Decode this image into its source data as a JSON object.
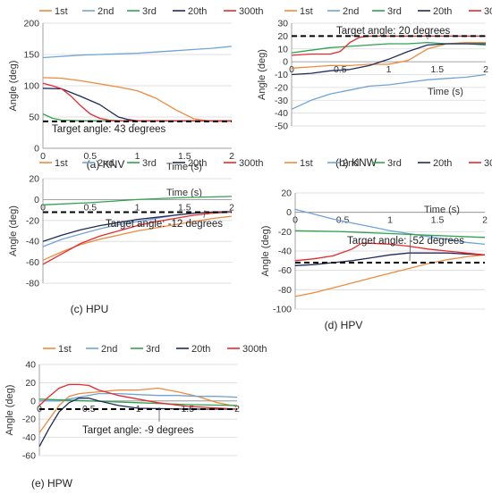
{
  "figure": {
    "ylabel": "Angle (deg)",
    "xlabel": "Time (s)",
    "legend": [
      "1st",
      "2nd",
      "3rd",
      "20th",
      "300th"
    ]
  },
  "series_colors": [
    "#ee8a3c",
    "#6fa4d6",
    "#2ea44f",
    "#1f2a5a",
    "#e8292c"
  ],
  "chart_data": [
    {
      "type": "line",
      "panel": "(a) KNV",
      "ylabel": "Angle (deg)",
      "xlabel": "Time (s)",
      "xlim": [
        0,
        2
      ],
      "ylim": [
        0,
        200
      ],
      "xticks": [
        0,
        0.5,
        1,
        1.5,
        2
      ],
      "yticks": [
        0,
        50,
        100,
        150,
        200
      ],
      "target": {
        "value": 43,
        "label": "Target angle: 43 degrees"
      },
      "series": [
        {
          "name": "1st",
          "x": [
            0,
            0.2,
            0.4,
            0.6,
            0.8,
            1.0,
            1.2,
            1.4,
            1.6,
            1.8,
            2.0
          ],
          "y": [
            113,
            112,
            108,
            103,
            98,
            92,
            80,
            62,
            47,
            43,
            43
          ]
        },
        {
          "name": "2nd",
          "x": [
            0,
            0.2,
            0.4,
            0.6,
            0.8,
            1.0,
            1.2,
            1.4,
            1.6,
            1.8,
            2.0
          ],
          "y": [
            145,
            147,
            149,
            150,
            151,
            152,
            154,
            156,
            158,
            160,
            163
          ]
        },
        {
          "name": "3rd",
          "x": [
            0,
            0.1,
            0.2,
            0.4,
            0.6,
            0.8,
            1.0,
            1.5,
            2.0
          ],
          "y": [
            55,
            48,
            45,
            44,
            44,
            44,
            44,
            44,
            44
          ]
        },
        {
          "name": "20th",
          "x": [
            0,
            0.2,
            0.4,
            0.6,
            0.7,
            0.8,
            0.9,
            1.0,
            1.2,
            1.5,
            2.0
          ],
          "y": [
            96,
            95,
            83,
            70,
            60,
            50,
            46,
            44,
            44,
            44,
            44
          ]
        },
        {
          "name": "300th",
          "x": [
            0,
            0.1,
            0.2,
            0.3,
            0.4,
            0.5,
            0.6,
            0.7,
            0.8,
            1.0,
            1.5,
            2.0
          ],
          "y": [
            104,
            100,
            95,
            83,
            68,
            55,
            48,
            45,
            44,
            44,
            44,
            44
          ]
        }
      ]
    },
    {
      "type": "line",
      "panel": "(b) KNW",
      "ylabel": "Angle (deg)",
      "xlabel": "Time (s)",
      "xlim": [
        0,
        2
      ],
      "ylim": [
        -50,
        30
      ],
      "xticks": [
        0,
        0.5,
        1,
        1.5,
        2
      ],
      "yticks": [
        -50,
        -40,
        -30,
        -20,
        -10,
        0,
        10,
        20,
        30
      ],
      "target": {
        "value": 20,
        "label": "Target angle: 20 degrees"
      },
      "series": [
        {
          "name": "1st",
          "x": [
            0,
            0.2,
            0.4,
            0.6,
            0.8,
            1.0,
            1.2,
            1.4,
            1.6,
            1.8,
            2.0
          ],
          "y": [
            -5,
            -4,
            -3,
            -3,
            -2,
            -2,
            1,
            10,
            14,
            15,
            15
          ]
        },
        {
          "name": "2nd",
          "x": [
            0,
            0.2,
            0.4,
            0.6,
            0.8,
            1.0,
            1.2,
            1.4,
            1.6,
            1.8,
            2.0
          ],
          "y": [
            -37,
            -30,
            -25,
            -22,
            -19,
            -18,
            -16,
            -14,
            -13,
            -12,
            -10
          ]
        },
        {
          "name": "3rd",
          "x": [
            0,
            0.2,
            0.4,
            0.6,
            0.8,
            1.0,
            1.2,
            1.4,
            1.6,
            1.8,
            2.0
          ],
          "y": [
            7,
            9,
            11,
            12,
            13,
            14,
            14,
            15,
            14,
            14,
            13
          ]
        },
        {
          "name": "20th",
          "x": [
            0,
            0.2,
            0.4,
            0.6,
            0.8,
            1.0,
            1.2,
            1.4,
            1.6,
            1.8,
            2.0
          ],
          "y": [
            -10,
            -9,
            -7,
            -6,
            -3,
            2,
            8,
            13,
            14,
            14,
            14
          ]
        },
        {
          "name": "300th",
          "x": [
            0,
            0.2,
            0.4,
            0.5,
            0.6,
            0.7,
            0.8,
            1.0,
            1.2,
            1.5,
            2.0
          ],
          "y": [
            5,
            6,
            6,
            8,
            15,
            19,
            20,
            20,
            20,
            20,
            20
          ]
        }
      ]
    },
    {
      "type": "line",
      "panel": "(c) HPU",
      "ylabel": "Angle (deg)",
      "xlabel": "Time (s)",
      "xlim": [
        0,
        2
      ],
      "ylim": [
        -80,
        20
      ],
      "xticks": [
        0,
        0.5,
        1,
        1.5,
        2
      ],
      "yticks": [
        -80,
        -60,
        -40,
        -20,
        0,
        20
      ],
      "target": {
        "value": -12,
        "label": "Target angle: -12 degrees"
      },
      "series": [
        {
          "name": "1st",
          "x": [
            0,
            0.2,
            0.4,
            0.6,
            0.8,
            1.0,
            1.2,
            1.4,
            1.6,
            1.8,
            2.0
          ],
          "y": [
            -58,
            -50,
            -43,
            -38,
            -34,
            -30,
            -27,
            -24,
            -21,
            -18,
            -16
          ]
        },
        {
          "name": "2nd",
          "x": [
            0,
            0.2,
            0.4,
            0.6,
            0.8,
            1.0,
            1.2,
            1.4,
            1.6,
            1.8,
            2.0
          ],
          "y": [
            -45,
            -38,
            -33,
            -28,
            -24,
            -21,
            -18,
            -15,
            -13,
            -12,
            -11
          ]
        },
        {
          "name": "3rd",
          "x": [
            0,
            0.5,
            1.0,
            1.5,
            2.0
          ],
          "y": [
            -5,
            -3,
            0,
            2,
            3
          ]
        },
        {
          "name": "20th",
          "x": [
            0,
            0.2,
            0.4,
            0.6,
            0.8,
            1.0,
            1.2,
            1.4,
            1.6,
            1.8,
            2.0
          ],
          "y": [
            -40,
            -34,
            -29,
            -25,
            -22,
            -19,
            -17,
            -15,
            -13,
            -12,
            -12
          ]
        },
        {
          "name": "300th",
          "x": [
            0,
            0.2,
            0.4,
            0.6,
            0.8,
            1.0,
            1.2,
            1.4,
            1.6,
            1.8,
            2.0
          ],
          "y": [
            -62,
            -52,
            -42,
            -35,
            -30,
            -25,
            -21,
            -18,
            -15,
            -13,
            -12
          ]
        }
      ]
    },
    {
      "type": "line",
      "panel": "(d) HPV",
      "ylabel": "Angle (deg)",
      "xlabel": "Time (s)",
      "xlim": [
        0,
        2
      ],
      "ylim": [
        -100,
        20
      ],
      "xticks": [
        0,
        0.5,
        1,
        1.5,
        2
      ],
      "yticks": [
        -100,
        -80,
        -60,
        -40,
        -20,
        0,
        20
      ],
      "target": {
        "value": -52,
        "label": "Target angle: -52 degrees"
      },
      "series": [
        {
          "name": "1st",
          "x": [
            0,
            0.2,
            0.4,
            0.6,
            0.8,
            1.0,
            1.2,
            1.4,
            1.6,
            1.8,
            2.0
          ],
          "y": [
            -87,
            -83,
            -78,
            -73,
            -68,
            -63,
            -58,
            -53,
            -49,
            -46,
            -44
          ]
        },
        {
          "name": "2nd",
          "x": [
            0,
            0.2,
            0.4,
            0.6,
            0.8,
            1.0,
            1.2,
            1.4,
            1.6,
            1.8,
            2.0
          ],
          "y": [
            3,
            -2,
            -7,
            -11,
            -15,
            -19,
            -22,
            -25,
            -28,
            -31,
            -33
          ]
        },
        {
          "name": "3rd",
          "x": [
            0,
            0.5,
            1.0,
            1.5,
            2.0
          ],
          "y": [
            -19,
            -20,
            -22,
            -24,
            -26
          ]
        },
        {
          "name": "20th",
          "x": [
            0,
            0.2,
            0.4,
            0.6,
            0.8,
            1.0,
            1.2,
            1.4,
            1.6,
            1.8,
            2.0
          ],
          "y": [
            -55,
            -54,
            -52,
            -50,
            -47,
            -44,
            -42,
            -42,
            -42,
            -43,
            -44
          ]
        },
        {
          "name": "300th",
          "x": [
            0,
            0.2,
            0.4,
            0.6,
            0.7,
            0.8,
            1.0,
            1.2,
            1.4,
            1.6,
            1.8,
            2.0
          ],
          "y": [
            -50,
            -48,
            -45,
            -38,
            -32,
            -32,
            -33,
            -35,
            -38,
            -40,
            -42,
            -44
          ]
        }
      ]
    },
    {
      "type": "line",
      "panel": "(e) HPW",
      "ylabel": "Angle (deg)",
      "xlabel": "Time (s)",
      "xlim": [
        0,
        2
      ],
      "ylim": [
        -60,
        40
      ],
      "xticks": [
        0,
        0.5,
        1,
        1.5,
        2
      ],
      "yticks": [
        -60,
        -40,
        -20,
        0,
        20,
        40
      ],
      "target": {
        "value": -9,
        "label": "Target angle: -9 degrees"
      },
      "series": [
        {
          "name": "1st",
          "x": [
            0,
            0.1,
            0.2,
            0.3,
            0.4,
            0.6,
            0.8,
            1.0,
            1.2,
            1.4,
            1.6,
            1.8,
            2.0
          ],
          "y": [
            -35,
            -20,
            -5,
            5,
            8,
            10,
            12,
            12,
            14,
            10,
            5,
            -2,
            -6
          ]
        },
        {
          "name": "2nd",
          "x": [
            0,
            0.2,
            0.4,
            0.6,
            0.8,
            1.0,
            1.2,
            1.4,
            1.6,
            1.8,
            2.0
          ],
          "y": [
            0,
            0,
            4,
            8,
            8,
            7,
            6,
            6,
            5,
            5,
            4
          ]
        },
        {
          "name": "3rd",
          "x": [
            0,
            0.5,
            1.0,
            1.5,
            2.0
          ],
          "y": [
            2,
            0,
            -2,
            -4,
            -5
          ]
        },
        {
          "name": "20th",
          "x": [
            0,
            0.1,
            0.2,
            0.3,
            0.4,
            0.5,
            0.6,
            0.8,
            1.0,
            1.5,
            2.0
          ],
          "y": [
            -50,
            -30,
            -12,
            -2,
            3,
            3,
            0,
            -5,
            -8,
            -9,
            -9
          ]
        },
        {
          "name": "300th",
          "x": [
            0,
            0.1,
            0.2,
            0.3,
            0.4,
            0.5,
            0.6,
            0.8,
            1.0,
            1.2,
            1.5,
            2.0
          ],
          "y": [
            -5,
            5,
            14,
            18,
            18,
            17,
            12,
            6,
            2,
            -2,
            -6,
            -9
          ]
        }
      ]
    }
  ]
}
